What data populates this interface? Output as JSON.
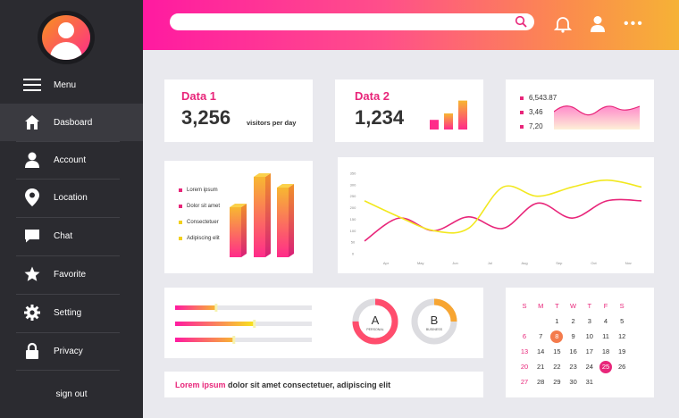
{
  "sidebar": {
    "menu_label": "Menu",
    "items": [
      {
        "label": "Dasboard",
        "icon": "home-icon"
      },
      {
        "label": "Account",
        "icon": "user-icon"
      },
      {
        "label": "Location",
        "icon": "location-pin-icon"
      },
      {
        "label": "Chat",
        "icon": "chat-icon"
      },
      {
        "label": "Favorite",
        "icon": "star-icon"
      },
      {
        "label": "Setting",
        "icon": "gear-icon"
      },
      {
        "label": "Privacy",
        "icon": "lock-icon"
      }
    ],
    "active_item": "Dasboard",
    "signout_label": "sign out"
  },
  "header": {
    "search_value": "",
    "dots": "•••"
  },
  "kpi1": {
    "title": "Data 1",
    "value": "3,256",
    "unit": "visitors per day"
  },
  "kpi2": {
    "title": "Data 2",
    "value": "1,234",
    "bar_levels": [
      0.3,
      0.5,
      0.9
    ]
  },
  "stats": [
    {
      "label": "6,543.87"
    },
    {
      "label": "3,46"
    },
    {
      "label": "7,20"
    }
  ],
  "legend": [
    {
      "label": "Lorem ipsum",
      "color": "#e8267a"
    },
    {
      "label": "Dolor sit amet",
      "color": "#e8267a"
    },
    {
      "label": "Consectetuer",
      "color": "#f2d01c"
    },
    {
      "label": "Adipiscing elit",
      "color": "#f2d01c"
    }
  ],
  "chart_data": {
    "type": "line",
    "categories": [
      "Apr",
      "May",
      "Jun",
      "Jul",
      "Aug",
      "Sep",
      "Oct",
      "Nov",
      "Dec"
    ],
    "y_ticks": [
      0,
      50,
      100,
      150,
      200,
      250,
      300,
      350
    ],
    "ylim": [
      0,
      350
    ],
    "grid": false,
    "series": [
      {
        "color": "#e8267a",
        "values": [
          55,
          155,
          100,
          160,
          110,
          220,
          155,
          230,
          230
        ]
      },
      {
        "color": "#f2e81e",
        "values": [
          230,
          160,
          100,
          110,
          290,
          250,
          290,
          320,
          290
        ]
      }
    ]
  },
  "progress": [
    {
      "level": 0.3,
      "colors": [
        "#ff1aa1",
        "#f7b731"
      ]
    },
    {
      "level": 0.58,
      "colors": [
        "#ff1aa1",
        "#f7e41c"
      ]
    },
    {
      "level": 0.43,
      "colors": [
        "#ff1aa1",
        "#f7b731"
      ]
    }
  ],
  "donuts": [
    {
      "letter": "A",
      "label": "PERSONAL",
      "level": 0.75,
      "color": "#ff4d6d"
    },
    {
      "letter": "B",
      "label": "BUSINESS",
      "level": 0.25,
      "color": "#f7a532"
    }
  ],
  "footer_text": {
    "highlight": "Lorem ipsum",
    "rest": " dolor sit amet consectetuer, adipiscing elit"
  },
  "calendar": {
    "weekdays": [
      "S",
      "M",
      "T",
      "W",
      "T",
      "F",
      "S"
    ],
    "weeks": [
      [
        "",
        "",
        "",
        "",
        "",
        "",
        ""
      ],
      [
        "",
        "",
        "1",
        "2",
        "3",
        "4",
        "5"
      ],
      [
        "6",
        "7",
        "8",
        "9",
        "10",
        "11",
        "12"
      ],
      [
        "13",
        "14",
        "15",
        "16",
        "17",
        "18",
        "19"
      ],
      [
        "20",
        "21",
        "22",
        "23",
        "24",
        "25",
        "26"
      ],
      [
        "27",
        "28",
        "29",
        "30",
        "31",
        "",
        ""
      ]
    ],
    "highlighted_day": "8",
    "highlighted_color": "#f47b4c",
    "selected_day": "25",
    "selected_color": "#e8267a"
  }
}
